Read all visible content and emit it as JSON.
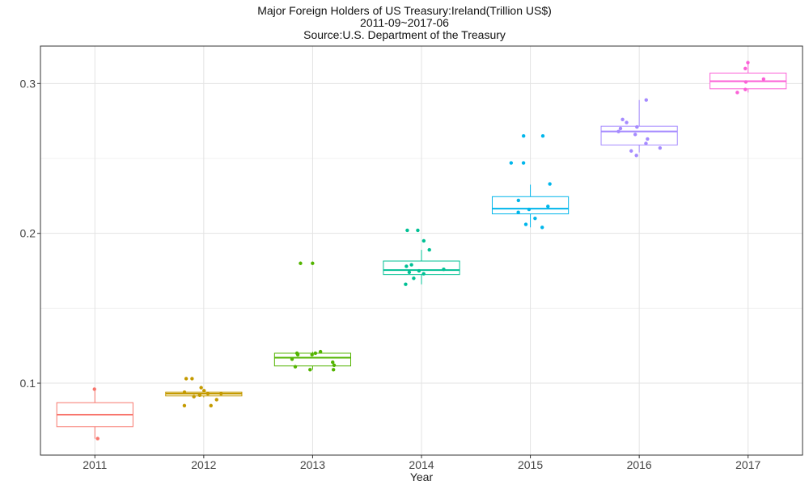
{
  "chart_data": {
    "type": "boxplot",
    "title": "Major Foreign Holders of US Treasury:Ireland(Trillion US$)",
    "subtitle": "2011-09~2017-06",
    "source": "Source:U.S. Department of the Treasury",
    "xlabel": "Year",
    "ylabel": "",
    "ylim": [
      0.052,
      0.325
    ],
    "yticks": [
      0.1,
      0.2,
      0.3
    ],
    "ytick_labels": [
      "0.1",
      "0.2",
      "0.3"
    ],
    "grid": true,
    "legend": "none",
    "categories": [
      "2011",
      "2012",
      "2013",
      "2014",
      "2015",
      "2016",
      "2017"
    ],
    "colors": [
      "#F8766D",
      "#C49A00",
      "#53B400",
      "#00C094",
      "#00B6EB",
      "#A58AFF",
      "#FB61D7"
    ],
    "boxes": [
      {
        "min": 0.063,
        "q1": 0.071,
        "median": 0.079,
        "q3": 0.087,
        "max": 0.095
      },
      {
        "min": 0.0905,
        "q1": 0.0915,
        "median": 0.093,
        "q3": 0.094,
        "max": 0.0955
      },
      {
        "min": 0.109,
        "q1": 0.1115,
        "median": 0.117,
        "q3": 0.12,
        "max": 0.121
      },
      {
        "min": 0.166,
        "q1": 0.1725,
        "median": 0.1755,
        "q3": 0.1815,
        "max": 0.189
      },
      {
        "min": 0.204,
        "q1": 0.213,
        "median": 0.2165,
        "q3": 0.2245,
        "max": 0.2325
      },
      {
        "min": 0.254,
        "q1": 0.259,
        "median": 0.268,
        "q3": 0.2715,
        "max": 0.289
      },
      {
        "min": 0.294,
        "q1": 0.2965,
        "median": 0.3015,
        "q3": 0.307,
        "max": 0.314
      }
    ],
    "points": [
      [
        0.096,
        0.063
      ],
      [
        0.103,
        0.103,
        0.097,
        0.095,
        0.094,
        0.093,
        0.093,
        0.092,
        0.091,
        0.089,
        0.085,
        0.085
      ],
      [
        0.18,
        0.18,
        0.121,
        0.12,
        0.12,
        0.119,
        0.119,
        0.116,
        0.114,
        0.112,
        0.111,
        0.109,
        0.109
      ],
      [
        0.202,
        0.202,
        0.195,
        0.189,
        0.179,
        0.178,
        0.176,
        0.175,
        0.174,
        0.173,
        0.17,
        0.166
      ],
      [
        0.265,
        0.265,
        0.247,
        0.247,
        0.233,
        0.222,
        0.218,
        0.216,
        0.214,
        0.21,
        0.206,
        0.204
      ],
      [
        0.289,
        0.276,
        0.274,
        0.271,
        0.27,
        0.268,
        0.266,
        0.263,
        0.26,
        0.257,
        0.255,
        0.252
      ],
      [
        0.314,
        0.31,
        0.303,
        0.301,
        0.296,
        0.294
      ]
    ]
  }
}
